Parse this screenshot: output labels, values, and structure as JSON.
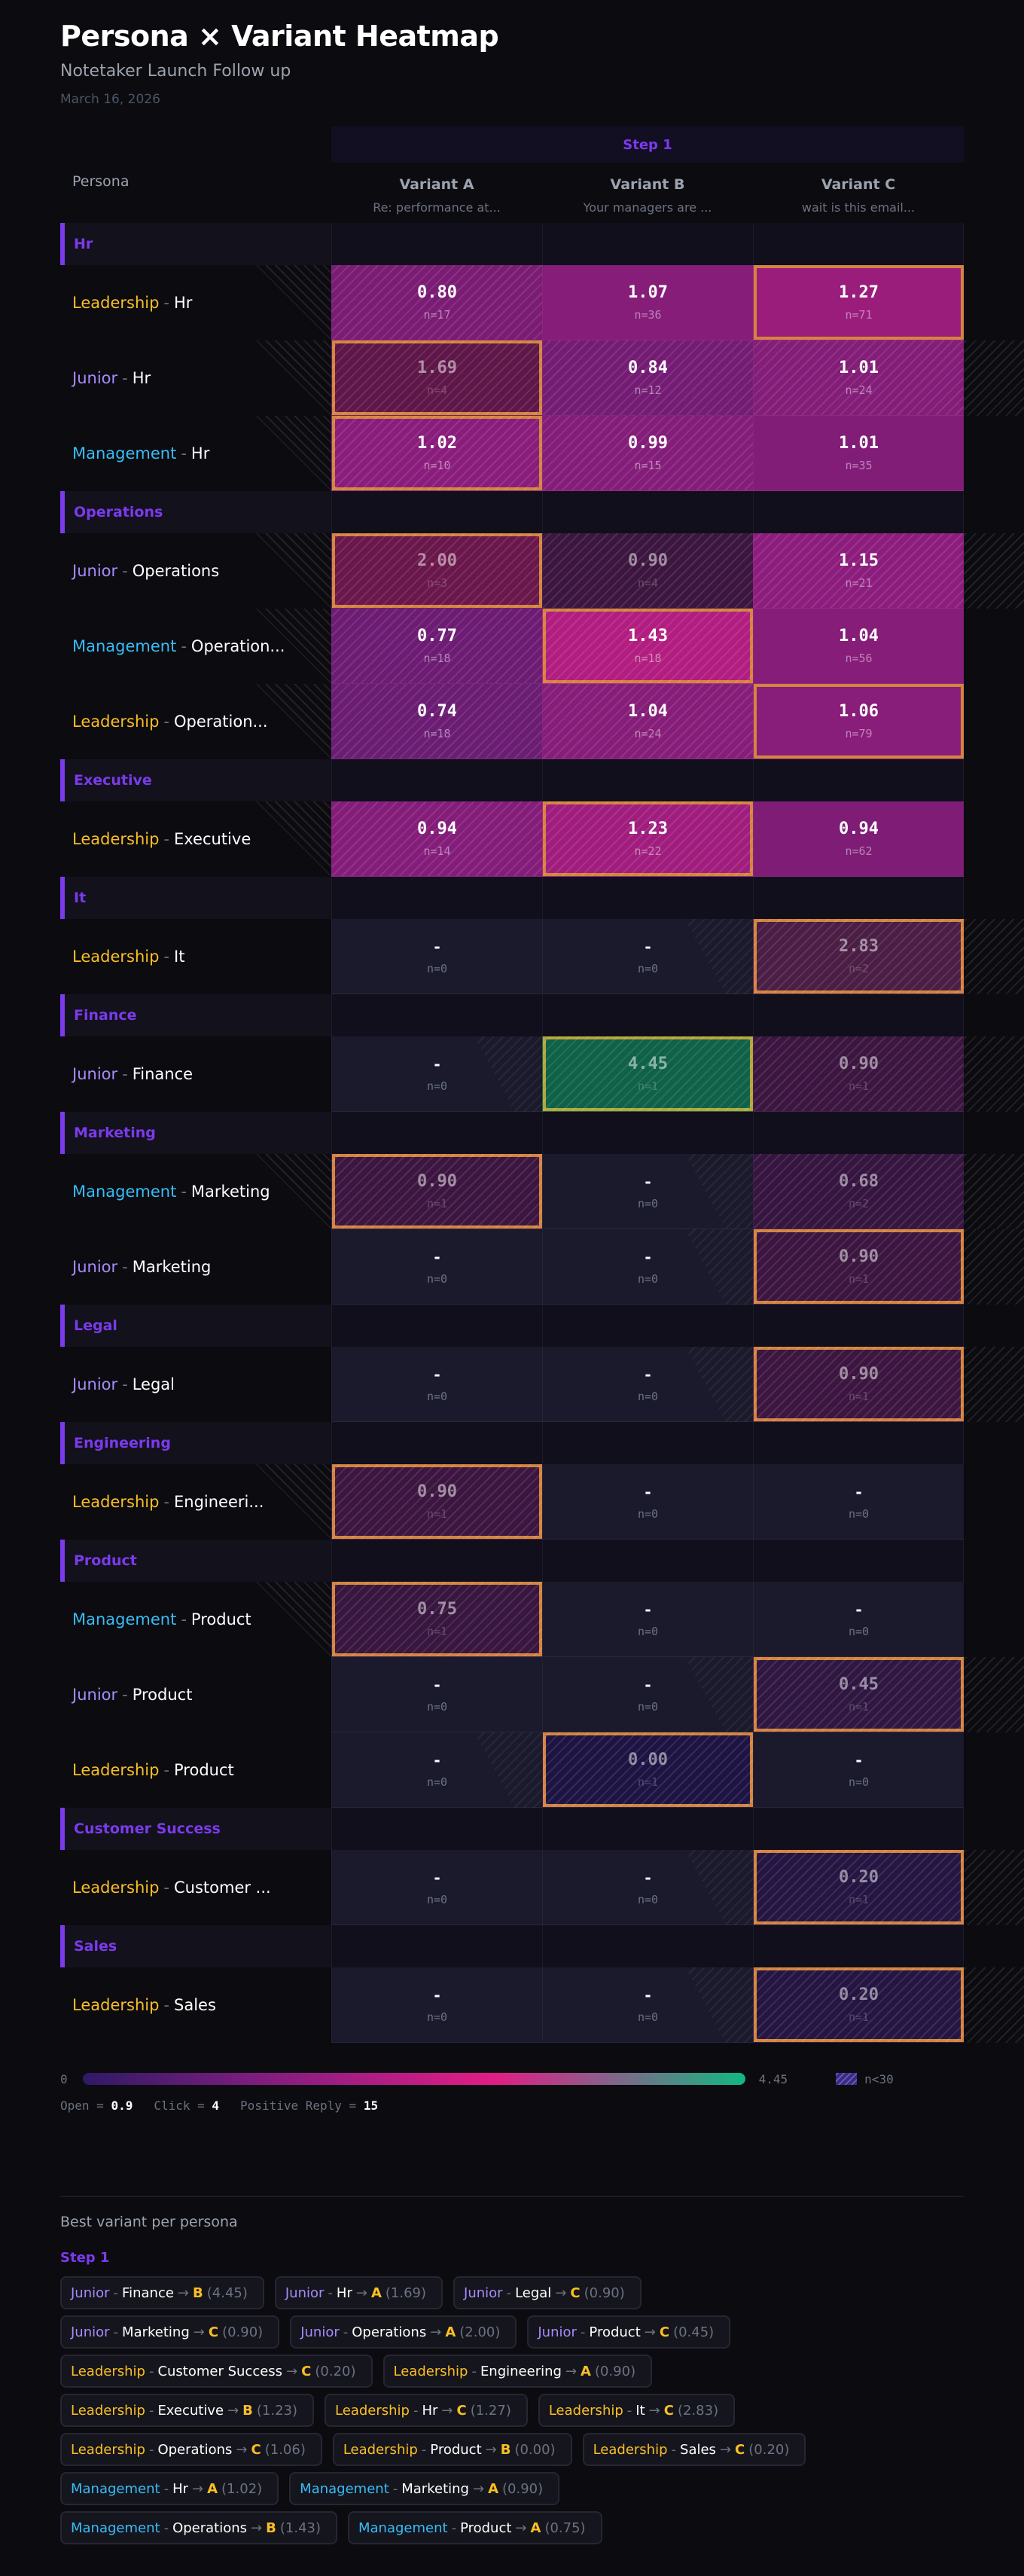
{
  "header": {
    "title": "Persona × Variant Heatmap",
    "subtitle": "Notetaker Launch Follow up",
    "date": "March 16, 2026"
  },
  "table": {
    "step_label": "Step 1",
    "persona_header": "Persona",
    "variants": [
      {
        "name": "Variant A",
        "subject": "Re: performance at..."
      },
      {
        "name": "Variant B",
        "subject": "Your managers are ..."
      },
      {
        "name": "Variant C",
        "subject": "wait is this email..."
      }
    ],
    "groups": [
      {
        "name": "Hr",
        "rows": [
          {
            "level": "Leadership",
            "dept": "Hr",
            "cells": [
              {
                "value": "0.80",
                "n": "n=17",
                "hatched": true,
                "best": false,
                "color": "#7a1c74"
              },
              {
                "value": "1.07",
                "n": "n=36",
                "hatched": false,
                "best": false,
                "color": "#861d79"
              },
              {
                "value": "1.27",
                "n": "n=71",
                "hatched": false,
                "best": true,
                "color": "#9a1d7c"
              }
            ]
          },
          {
            "level": "Junior",
            "dept": "Hr",
            "cells": [
              {
                "value": "1.69",
                "n": "n=4",
                "hatched": true,
                "best": true,
                "low": true,
                "color": "#5e1748"
              },
              {
                "value": "0.84",
                "n": "n=12",
                "hatched": true,
                "best": false,
                "color": "#741c74"
              },
              {
                "value": "1.01",
                "n": "n=24",
                "hatched": true,
                "best": false,
                "color": "#831d78"
              }
            ]
          },
          {
            "level": "Management",
            "dept": "Hr",
            "cells": [
              {
                "value": "1.02",
                "n": "n=10",
                "hatched": true,
                "best": true,
                "color": "#8a1d7c"
              },
              {
                "value": "0.99",
                "n": "n=15",
                "hatched": true,
                "best": false,
                "color": "#841d79"
              },
              {
                "value": "1.01",
                "n": "n=35",
                "hatched": false,
                "best": false,
                "color": "#821d77"
              }
            ]
          }
        ]
      },
      {
        "name": "Operations",
        "rows": [
          {
            "level": "Junior",
            "dept": "Operations",
            "cells": [
              {
                "value": "2.00",
                "n": "n=3",
                "hatched": true,
                "best": true,
                "low": true,
                "color": "#6a174c"
              },
              {
                "value": "0.90",
                "n": "n=4",
                "hatched": true,
                "best": false,
                "low": true,
                "color": "#3c163f"
              },
              {
                "value": "1.15",
                "n": "n=21",
                "hatched": true,
                "best": false,
                "color": "#8c1d7d"
              }
            ]
          },
          {
            "level": "Management",
            "dept": "Operation...",
            "cells": [
              {
                "value": "0.77",
                "n": "n=18",
                "hatched": true,
                "best": false,
                "color": "#6d1c74"
              },
              {
                "value": "1.43",
                "n": "n=18",
                "hatched": true,
                "best": true,
                "color": "#b21d80"
              },
              {
                "value": "1.04",
                "n": "n=56",
                "hatched": false,
                "best": false,
                "color": "#861d79"
              }
            ]
          },
          {
            "level": "Leadership",
            "dept": "Operation...",
            "cells": [
              {
                "value": "0.74",
                "n": "n=18",
                "hatched": true,
                "best": false,
                "color": "#6b1c73"
              },
              {
                "value": "1.04",
                "n": "n=24",
                "hatched": true,
                "best": false,
                "color": "#851d79"
              },
              {
                "value": "1.06",
                "n": "n=79",
                "hatched": false,
                "best": true,
                "color": "#881d7a"
              }
            ]
          }
        ]
      },
      {
        "name": "Executive",
        "rows": [
          {
            "level": "Leadership",
            "dept": "Executive",
            "cells": [
              {
                "value": "0.94",
                "n": "n=14",
                "hatched": true,
                "best": false,
                "color": "#841d7a"
              },
              {
                "value": "1.23",
                "n": "n=22",
                "hatched": true,
                "best": true,
                "color": "#a01d7e"
              },
              {
                "value": "0.94",
                "n": "n=62",
                "hatched": false,
                "best": false,
                "color": "#7e1c76"
              }
            ]
          }
        ]
      },
      {
        "name": "It",
        "rows": [
          {
            "level": "Leadership",
            "dept": "It",
            "cells": [
              {
                "value": "-",
                "n": "n=0",
                "empty": true
              },
              {
                "value": "-",
                "n": "n=0",
                "empty": true
              },
              {
                "value": "2.83",
                "n": "n=2",
                "hatched": true,
                "best": true,
                "low": true,
                "color": "#4b1e45"
              }
            ]
          }
        ]
      },
      {
        "name": "Finance",
        "rows": [
          {
            "level": "Junior",
            "dept": "Finance",
            "cells": [
              {
                "value": "-",
                "n": "n=0",
                "empty": true
              },
              {
                "value": "4.45",
                "n": "n=1",
                "hatched": true,
                "best": true,
                "top": true,
                "low": true,
                "color": "#0f6148"
              },
              {
                "value": "0.90",
                "n": "n=1",
                "hatched": true,
                "best": false,
                "low": true,
                "color": "#3c1640"
              }
            ]
          }
        ]
      },
      {
        "name": "Marketing",
        "rows": [
          {
            "level": "Management",
            "dept": "Marketing",
            "cells": [
              {
                "value": "0.90",
                "n": "n=1",
                "hatched": true,
                "best": true,
                "low": true,
                "color": "#3c1640"
              },
              {
                "value": "-",
                "n": "n=0",
                "empty": true
              },
              {
                "value": "0.68",
                "n": "n=2",
                "hatched": true,
                "best": false,
                "low": true,
                "color": "#361540"
              }
            ]
          },
          {
            "level": "Junior",
            "dept": "Marketing",
            "cells": [
              {
                "value": "-",
                "n": "n=0",
                "empty": true
              },
              {
                "value": "-",
                "n": "n=0",
                "empty": true
              },
              {
                "value": "0.90",
                "n": "n=1",
                "hatched": true,
                "best": true,
                "low": true,
                "color": "#3c1640"
              }
            ]
          }
        ]
      },
      {
        "name": "Legal",
        "rows": [
          {
            "level": "Junior",
            "dept": "Legal",
            "cells": [
              {
                "value": "-",
                "n": "n=0",
                "empty": true
              },
              {
                "value": "-",
                "n": "n=0",
                "empty": true
              },
              {
                "value": "0.90",
                "n": "n=1",
                "hatched": true,
                "best": true,
                "low": true,
                "color": "#3c1640"
              }
            ]
          }
        ]
      },
      {
        "name": "Engineering",
        "rows": [
          {
            "level": "Leadership",
            "dept": "Engineeri...",
            "cells": [
              {
                "value": "0.90",
                "n": "n=1",
                "hatched": true,
                "best": true,
                "low": true,
                "color": "#3c1640"
              },
              {
                "value": "-",
                "n": "n=0",
                "empty": true
              },
              {
                "value": "-",
                "n": "n=0",
                "empty": true
              }
            ]
          }
        ]
      },
      {
        "name": "Product",
        "rows": [
          {
            "level": "Management",
            "dept": "Product",
            "cells": [
              {
                "value": "0.75",
                "n": "n=1",
                "hatched": true,
                "best": true,
                "low": true,
                "color": "#38163f"
              },
              {
                "value": "-",
                "n": "n=0",
                "empty": true
              },
              {
                "value": "-",
                "n": "n=0",
                "empty": true
              }
            ]
          },
          {
            "level": "Junior",
            "dept": "Product",
            "cells": [
              {
                "value": "-",
                "n": "n=0",
                "empty": true
              },
              {
                "value": "-",
                "n": "n=0",
                "empty": true
              },
              {
                "value": "0.45",
                "n": "n=1",
                "hatched": true,
                "best": true,
                "low": true,
                "color": "#2f1742"
              }
            ]
          },
          {
            "level": "Leadership",
            "dept": "Product",
            "cells": [
              {
                "value": "-",
                "n": "n=0",
                "empty": true
              },
              {
                "value": "0.00",
                "n": "n=1",
                "hatched": true,
                "best": true,
                "low": true,
                "color": "#1e1443"
              },
              {
                "value": "-",
                "n": "n=0",
                "empty": true
              }
            ]
          }
        ]
      },
      {
        "name": "Customer Success",
        "rows": [
          {
            "level": "Leadership",
            "dept": "Customer ...",
            "cells": [
              {
                "value": "-",
                "n": "n=0",
                "empty": true
              },
              {
                "value": "-",
                "n": "n=0",
                "empty": true
              },
              {
                "value": "0.20",
                "n": "n=1",
                "hatched": true,
                "best": true,
                "low": true,
                "color": "#251542"
              }
            ]
          }
        ]
      },
      {
        "name": "Sales",
        "rows": [
          {
            "level": "Leadership",
            "dept": "Sales",
            "cells": [
              {
                "value": "-",
                "n": "n=0",
                "empty": true
              },
              {
                "value": "-",
                "n": "n=0",
                "empty": true
              },
              {
                "value": "0.20",
                "n": "n=1",
                "hatched": true,
                "best": true,
                "low": true,
                "color": "#251542"
              }
            ]
          }
        ]
      }
    ]
  },
  "legend": {
    "min": "0",
    "max": "4.45",
    "hatch_label": "n<30",
    "metrics": [
      {
        "label": "Open = ",
        "value": "0.9"
      },
      {
        "label": "Click = ",
        "value": "4"
      },
      {
        "label": "Positive Reply = ",
        "value": "15"
      }
    ]
  },
  "best": {
    "title": "Best variant per persona",
    "step": "Step 1",
    "rows": [
      [
        {
          "level": "Junior",
          "dept": "Finance",
          "variant": "B",
          "score": "(4.45)"
        },
        {
          "level": "Junior",
          "dept": "Hr",
          "variant": "A",
          "score": "(1.69)"
        },
        {
          "level": "Junior",
          "dept": "Legal",
          "variant": "C",
          "score": "(0.90)"
        }
      ],
      [
        {
          "level": "Junior",
          "dept": "Marketing",
          "variant": "C",
          "score": "(0.90)"
        },
        {
          "level": "Junior",
          "dept": "Operations",
          "variant": "A",
          "score": "(2.00)"
        },
        {
          "level": "Junior",
          "dept": "Product",
          "variant": "C",
          "score": "(0.45)"
        }
      ],
      [
        {
          "level": "Leadership",
          "dept": "Customer Success",
          "variant": "C",
          "score": "(0.20)"
        },
        {
          "level": "Leadership",
          "dept": "Engineering",
          "variant": "A",
          "score": "(0.90)"
        }
      ],
      [
        {
          "level": "Leadership",
          "dept": "Executive",
          "variant": "B",
          "score": "(1.23)"
        },
        {
          "level": "Leadership",
          "dept": "Hr",
          "variant": "C",
          "score": "(1.27)"
        },
        {
          "level": "Leadership",
          "dept": "It",
          "variant": "C",
          "score": "(2.83)"
        }
      ],
      [
        {
          "level": "Leadership",
          "dept": "Operations",
          "variant": "C",
          "score": "(1.06)"
        },
        {
          "level": "Leadership",
          "dept": "Product",
          "variant": "B",
          "score": "(0.00)"
        },
        {
          "level": "Leadership",
          "dept": "Sales",
          "variant": "C",
          "score": "(0.20)"
        }
      ],
      [
        {
          "level": "Management",
          "dept": "Hr",
          "variant": "A",
          "score": "(1.02)"
        },
        {
          "level": "Management",
          "dept": "Marketing",
          "variant": "A",
          "score": "(0.90)"
        }
      ],
      [
        {
          "level": "Management",
          "dept": "Operations",
          "variant": "B",
          "score": "(1.43)"
        },
        {
          "level": "Management",
          "dept": "Product",
          "variant": "A",
          "score": "(0.75)"
        }
      ]
    ]
  },
  "colors": {
    "accent": "#7c3aed",
    "leadership": "#fbbf24",
    "junior": "#a78bfa",
    "management": "#38bdf8",
    "best_border": "#d4843f",
    "top_border": "#b5a63a",
    "scale_low": "#2e1a66",
    "scale_mid": "#e11d84",
    "scale_high": "#10b981"
  },
  "chart_data": {
    "type": "heatmap",
    "title": "Persona × Variant Heatmap",
    "subtitle": "Notetaker Launch Follow up",
    "x": [
      "Variant A",
      "Variant B",
      "Variant C"
    ],
    "y": [
      "Leadership - Hr",
      "Junior - Hr",
      "Management - Hr",
      "Junior - Operations",
      "Management - Operations",
      "Leadership - Operations",
      "Leadership - Executive",
      "Leadership - It",
      "Junior - Finance",
      "Management - Marketing",
      "Junior - Marketing",
      "Junior - Legal",
      "Leadership - Engineering",
      "Management - Product",
      "Junior - Product",
      "Leadership - Product",
      "Leadership - Customer Success",
      "Leadership - Sales"
    ],
    "values": [
      [
        0.8,
        1.07,
        1.27
      ],
      [
        1.69,
        0.84,
        1.01
      ],
      [
        1.02,
        0.99,
        1.01
      ],
      [
        2.0,
        0.9,
        1.15
      ],
      [
        0.77,
        1.43,
        1.04
      ],
      [
        0.74,
        1.04,
        1.06
      ],
      [
        0.94,
        1.23,
        0.94
      ],
      [
        null,
        null,
        2.83
      ],
      [
        null,
        4.45,
        0.9
      ],
      [
        0.9,
        null,
        0.68
      ],
      [
        null,
        null,
        0.9
      ],
      [
        null,
        null,
        0.9
      ],
      [
        0.9,
        null,
        null
      ],
      [
        0.75,
        null,
        null
      ],
      [
        null,
        null,
        0.45
      ],
      [
        null,
        0.0,
        null
      ],
      [
        null,
        null,
        0.2
      ],
      [
        null,
        null,
        0.2
      ]
    ],
    "n": [
      [
        17,
        36,
        71
      ],
      [
        4,
        12,
        24
      ],
      [
        10,
        15,
        35
      ],
      [
        3,
        4,
        21
      ],
      [
        18,
        18,
        56
      ],
      [
        18,
        24,
        79
      ],
      [
        14,
        22,
        62
      ],
      [
        0,
        0,
        2
      ],
      [
        0,
        1,
        1
      ],
      [
        1,
        0,
        2
      ],
      [
        0,
        0,
        1
      ],
      [
        0,
        0,
        1
      ],
      [
        1,
        0,
        0
      ],
      [
        1,
        0,
        0
      ],
      [
        0,
        0,
        1
      ],
      [
        0,
        1,
        0
      ],
      [
        0,
        0,
        1
      ],
      [
        0,
        0,
        1
      ]
    ],
    "color_range": [
      0,
      4.45
    ],
    "hatch_rule": "n<30",
    "weights": {
      "Open": 0.9,
      "Click": 4,
      "Positive Reply": 15
    }
  }
}
